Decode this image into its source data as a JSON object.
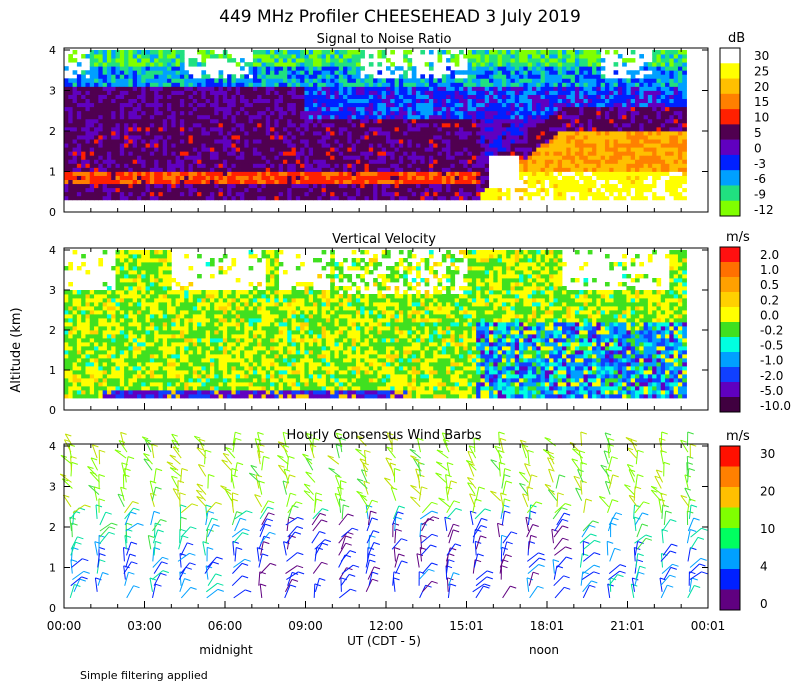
{
  "title": "449 MHz Profiler CHEESEHEAD  3 July 2019",
  "ylabel": "Altitude (km)",
  "xlabel": "UT  (CDT - 5)",
  "x_ticks": [
    "00:00",
    "03:00",
    "06:00",
    "09:00",
    "12:00",
    "15:01",
    "18:01",
    "21:01",
    "00:01"
  ],
  "x_notes": {
    "midnight": "midnight",
    "noon": "noon"
  },
  "footnote": "Simple filtering applied",
  "chart_data": [
    {
      "type": "heatmap",
      "title": "Signal to Noise Ratio",
      "units": "dB",
      "x_range_hours": [
        0,
        24
      ],
      "y_range_km": [
        0,
        4
      ],
      "y_ticks": [
        "0",
        "1",
        "2",
        "3",
        "4"
      ],
      "colorbar_labels": [
        "30",
        "25",
        "20",
        "15",
        "10",
        "5",
        "0",
        "-3",
        "-6",
        "-9",
        "-12"
      ],
      "colorbar_colors": [
        "#ffffff",
        "#ffff00",
        "#ffc000",
        "#ff8000",
        "#ff2000",
        "#500050",
        "#6000c0",
        "#0020ff",
        "#00a0ff",
        "#20e080",
        "#80ff00"
      ]
    },
    {
      "type": "heatmap",
      "title": "Vertical Velocity",
      "units": "m/s",
      "x_range_hours": [
        0,
        24
      ],
      "y_range_km": [
        0,
        4
      ],
      "y_ticks": [
        "0",
        "1",
        "2",
        "3",
        "4"
      ],
      "colorbar_labels": [
        "2.0",
        "1.0",
        "0.5",
        "0.2",
        "0.0",
        "-0.2",
        "-0.5",
        "-1.0",
        "-2.0",
        "-5.0",
        "-10.0"
      ],
      "colorbar_colors": [
        "#ff1010",
        "#ff7000",
        "#ffa000",
        "#ffd000",
        "#ffff00",
        "#40e020",
        "#00ffe0",
        "#00a0ff",
        "#1040ff",
        "#6000c0",
        "#400040"
      ]
    },
    {
      "type": "scatter",
      "title": "Hourly Consensus Wind Barbs",
      "units": "m/s",
      "x_range_hours": [
        0,
        24
      ],
      "y_range_km": [
        0,
        4
      ],
      "y_ticks": [
        "0",
        "1",
        "2",
        "3",
        "4"
      ],
      "colorbar_labels": [
        "30",
        "20",
        "10",
        "4",
        "0"
      ],
      "colorbar_colors": [
        "#ff1000",
        "#ff8000",
        "#ffc000",
        "#80ff00",
        "#00ff60",
        "#00a0ff",
        "#0020ff",
        "#600080"
      ]
    }
  ]
}
